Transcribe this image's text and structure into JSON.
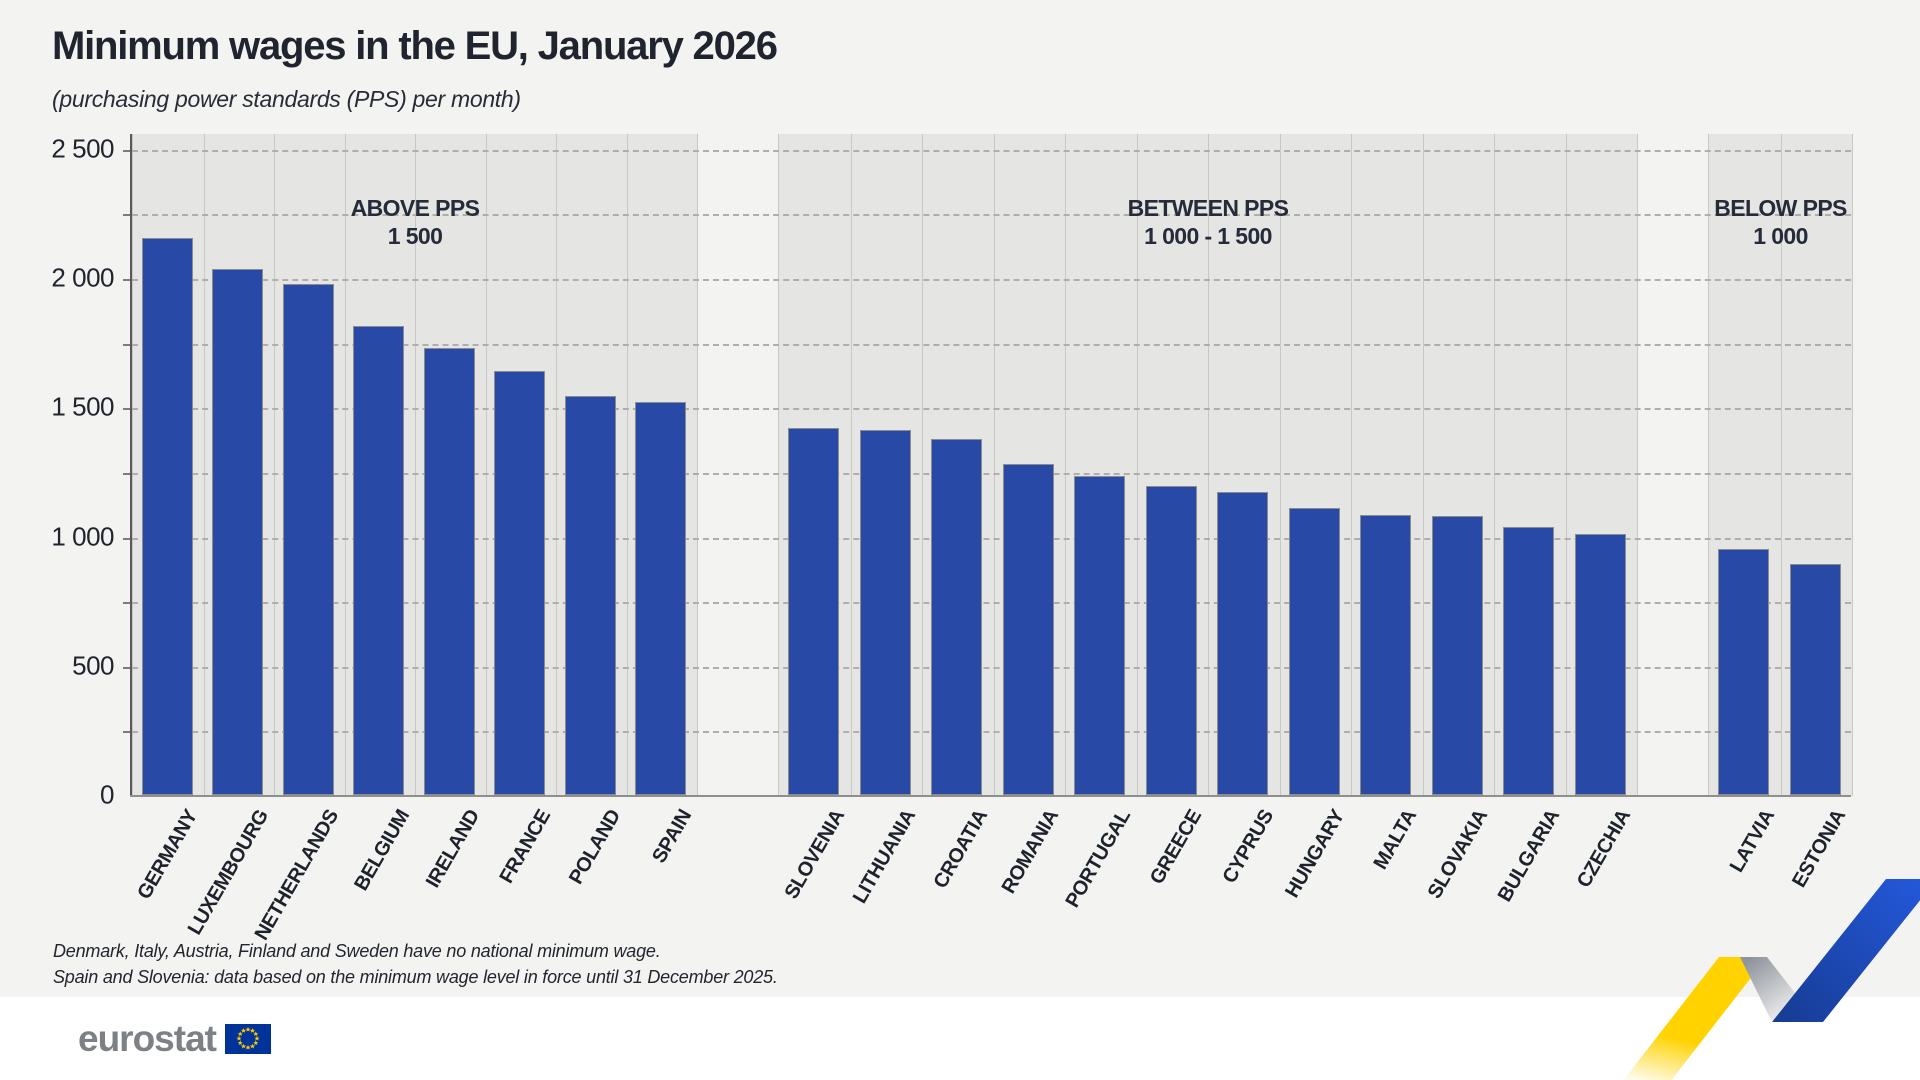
{
  "title": "Minimum wages in the EU, January 2026",
  "subtitle": "(purchasing power standards (PPS) per month)",
  "footnotes": [
    "Denmark, Italy, Austria, Finland and Sweden have no national minimum wage.",
    "Spain and Slovenia: data based on the minimum wage level in force until 31 December 2025."
  ],
  "logo": {
    "text": "eurostat",
    "flag_icon": "eu-flag-icon"
  },
  "colors": {
    "page_background": "#f3f3f1",
    "panel_background": "#e5e5e3",
    "bar_fill": "#2849a6",
    "gridline": "#b0aeab",
    "text_dark": "#20242e",
    "logo_gray": "#7d8185",
    "eu_flag_blue": "#003399",
    "eu_flag_stars": "#ffcc00",
    "ribbon_yellow": "#ffd200",
    "ribbon_blue": "#2050c8"
  },
  "chart_data": {
    "type": "bar",
    "title": "Minimum wages in the EU, January 2026",
    "subtitle": "(purchasing power standards (PPS) per month)",
    "xlabel": "",
    "ylabel": "PPS per month",
    "ylim": [
      0,
      2500
    ],
    "gridline_interval": 250,
    "grid": "dashed horizontal",
    "y_axis": {
      "tick_labels": [
        "0",
        "500",
        "1 000",
        "1 500",
        "2 000",
        "2 500"
      ],
      "tick_values": [
        0,
        500,
        1000,
        1500,
        2000,
        2500
      ]
    },
    "groups": [
      {
        "header_line1": "ABOVE PPS",
        "header_line2": "1 500",
        "countries": [
          "GERMANY",
          "LUXEMBOURG",
          "NETHERLANDS",
          "BELGIUM",
          "IRELAND",
          "FRANCE",
          "POLAND",
          "SPAIN"
        ],
        "values": [
          2153,
          2035,
          1977,
          1815,
          1731,
          1640,
          1545,
          1522
        ]
      },
      {
        "header_line1": "BETWEEN PPS",
        "header_line2": "1 000 - 1 500",
        "countries": [
          "SLOVENIA",
          "LITHUANIA",
          "CROATIA",
          "ROMANIA",
          "PORTUGAL",
          "GREECE",
          "CYPRUS",
          "HUNGARY",
          "MALTA",
          "SLOVAKIA",
          "BULGARIA",
          "CZECHIA"
        ],
        "values": [
          1418,
          1414,
          1378,
          1279,
          1233,
          1195,
          1172,
          1110,
          1084,
          1080,
          1038,
          1008
        ]
      },
      {
        "header_line1": "BELOW PPS",
        "header_line2": "1 000",
        "countries": [
          "LATVIA",
          "ESTONIA"
        ],
        "values": [
          953,
          892
        ]
      }
    ]
  }
}
